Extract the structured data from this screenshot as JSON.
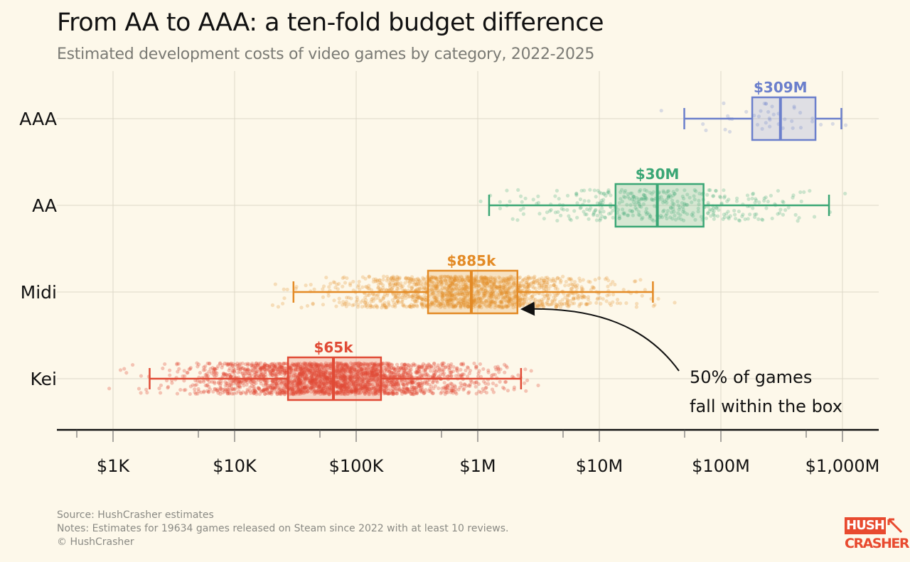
{
  "title": "From AA to AAA: a ten-fold budget difference",
  "subtitle": "Estimated development costs of video games by category, 2022-2025",
  "notes": {
    "source": "Source: HushCrasher estimates",
    "notes": "Notes: Estimates for 19634 games released on Steam since 2022 with at least 10 reviews.",
    "copyright": "© HushCrasher"
  },
  "logo": {
    "line1": "HUSH",
    "line2": "CRASHER",
    "color": "#e84a2f"
  },
  "annotation": {
    "line1": "50% of games",
    "line2": "fall within the box"
  },
  "chart_data": {
    "type": "boxplot",
    "title": "From AA to AAA: a ten-fold budget difference",
    "subtitle": "Estimated development costs of video games by category, 2022-2025",
    "x_scale": "log",
    "xlim": [
      400,
      2000000000
    ],
    "grid": true,
    "x_ticks": [
      {
        "value": 1000,
        "label": "$1K"
      },
      {
        "value": 10000,
        "label": "$10K"
      },
      {
        "value": 100000,
        "label": "$100K"
      },
      {
        "value": 1000000,
        "label": "$1M"
      },
      {
        "value": 10000000,
        "label": "$10M"
      },
      {
        "value": 100000000,
        "label": "$100M"
      },
      {
        "value": 1000000000,
        "label": "$1,000M"
      }
    ],
    "categories": [
      {
        "name": "AAA",
        "color": "#6b7fcc",
        "whisker_low": 50000000,
        "q1": 181000000,
        "median": 309000000,
        "q3": 600000000,
        "whisker_high": 980000000,
        "median_label": "$309M"
      },
      {
        "name": "AA",
        "color": "#3aa675",
        "whisker_low": 1240000,
        "q1": 13600000,
        "median": 30000000,
        "q3": 72000000,
        "whisker_high": 775000000,
        "median_label": "$30M"
      },
      {
        "name": "Midi",
        "color": "#e38a25",
        "whisker_low": 30500,
        "q1": 390000,
        "median": 885000,
        "q3": 2120000,
        "whisker_high": 27600000,
        "median_label": "$885k"
      },
      {
        "name": "Kei",
        "color": "#e04a35",
        "whisker_low": 2000,
        "q1": 27500,
        "median": 65000,
        "q3": 160000,
        "whisker_high": 2270000,
        "median_label": "$65k"
      }
    ]
  }
}
